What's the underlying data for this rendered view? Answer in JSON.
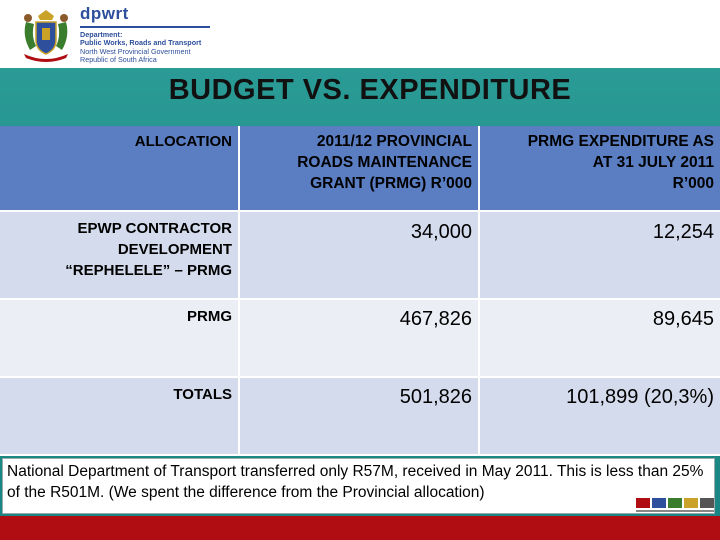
{
  "header": {
    "brand": "dpwrt",
    "dept_lines": [
      "Department:",
      "Public Works, Roads and Transport",
      "North West Provincial Government",
      "Republic of South Africa"
    ]
  },
  "title": "BUDGET VS. EXPENDITURE",
  "table": {
    "headers": {
      "col1": "ALLOCATION",
      "col2_lines": [
        "2011/12 PROVINCIAL",
        "ROADS MAINTENANCE",
        "GRANT (PRMG) R’000"
      ],
      "col3_lines": [
        "PRMG EXPENDITURE AS",
        "AT 31 JULY 2011",
        "R’000"
      ]
    },
    "rows": [
      {
        "label_lines": [
          "EPWP CONTRACTOR",
          "DEVELOPMENT",
          "“REPHELELE” – PRMG"
        ],
        "grant": "34,000",
        "expenditure": "12,254"
      },
      {
        "label_lines": [
          "PRMG"
        ],
        "grant": "467,826",
        "expenditure": "89,645"
      },
      {
        "label_lines": [
          "TOTALS"
        ],
        "grant": "501,826",
        "expenditure": "101,899 (20,3%)"
      }
    ]
  },
  "note": "National  Department of Transport  transferred only R57M, received in May 2011. This is less than 25% of the R501M. (We spent the difference from the Provincial allocation)",
  "colors": {
    "background": "#1e8d89",
    "header_row": "#5b7ec3",
    "row_light": "#d4dbec",
    "row_lighter": "#eceef5",
    "bottom_bar": "#b00d12",
    "brand": "#2d4f9c"
  },
  "icons": {
    "crest": "coat-of-arms-icon",
    "footer": "epwp-logo-icon"
  }
}
